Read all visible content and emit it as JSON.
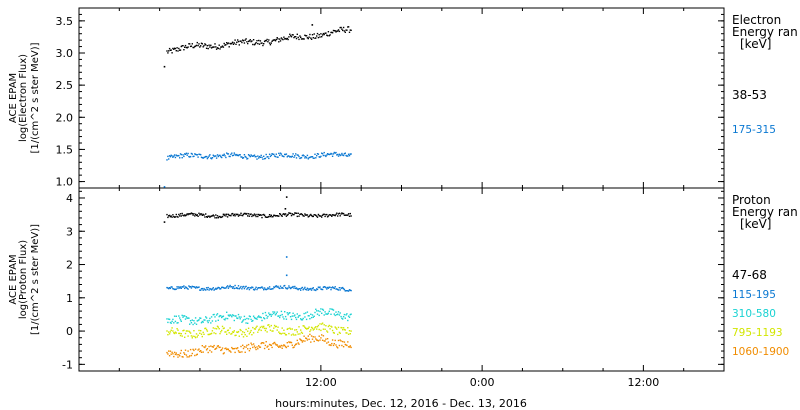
{
  "colors": {
    "black": "#000000",
    "blue": "#0a78d2",
    "cyan": "#19d2d2",
    "yellow": "#d2e600",
    "orange": "#f08c00"
  },
  "x_axis": {
    "label": "hours:minutes, Dec. 12, 2016 - Dec. 13, 2016",
    "range_hours": [
      0,
      48
    ],
    "ticks": [
      {
        "hour": 18,
        "label": "12:00"
      },
      {
        "hour": 30,
        "label": "0:00"
      },
      {
        "hour": 42,
        "label": "12:00"
      }
    ]
  },
  "chart_data": [
    {
      "type": "scatter",
      "ylabel": [
        "ACE EPAM",
        "log(Electron Flux)",
        "[1/(cm^2 s ster MeV)]"
      ],
      "ylim": [
        0.9,
        3.7
      ],
      "yticks": [
        1.0,
        1.5,
        2.0,
        2.5,
        3.0,
        3.5
      ],
      "ytick_labels": [
        "1.0",
        "1.5",
        "2.0",
        "2.5",
        "3.0",
        "3.5"
      ],
      "legend": {
        "title_lines": [
          "Electron",
          "Energy ran",
          "[keV]"
        ],
        "placement": "right"
      },
      "series": [
        {
          "name": "38-53",
          "color": "#000000",
          "x_start": 6.5,
          "x_end": 20.2,
          "values": [
            [
              6.5,
              3.05
            ],
            [
              9.0,
              3.12
            ],
            [
              12.0,
              3.16
            ],
            [
              15.0,
              3.22
            ],
            [
              18.0,
              3.3
            ],
            [
              20.2,
              3.37
            ]
          ],
          "outliers": [
            [
              6.3,
              2.8
            ],
            [
              17.3,
              3.45
            ]
          ]
        },
        {
          "name": "175-315",
          "color": "#0a78d2",
          "x_start": 6.5,
          "x_end": 20.2,
          "values": [
            [
              6.5,
              1.38
            ],
            [
              9.0,
              1.42
            ],
            [
              12.0,
              1.4
            ],
            [
              15.0,
              1.41
            ],
            [
              18.0,
              1.42
            ],
            [
              20.2,
              1.42
            ]
          ],
          "outliers": [
            [
              6.3,
              0.93
            ]
          ]
        }
      ]
    },
    {
      "type": "scatter",
      "ylabel": [
        "ACE EPAM",
        "log(Proton Flux)",
        "[1/(cm^2 s ster MeV)]"
      ],
      "ylim": [
        -1.2,
        4.3
      ],
      "yticks": [
        -1,
        0,
        1,
        2,
        3,
        4
      ],
      "ytick_labels": [
        "-1",
        "0",
        "1",
        "2",
        "3",
        "4"
      ],
      "legend": {
        "title_lines": [
          "Proton",
          "Energy ran",
          "[keV]"
        ],
        "placement": "right"
      },
      "series": [
        {
          "name": "47-68",
          "color": "#000000",
          "x_start": 6.5,
          "x_end": 20.2,
          "values": [
            [
              6.5,
              3.5
            ],
            [
              10.0,
              3.5
            ],
            [
              14.0,
              3.5
            ],
            [
              18.0,
              3.5
            ],
            [
              20.2,
              3.5
            ]
          ],
          "outliers": [
            [
              6.3,
              3.3
            ],
            [
              15.4,
              4.05
            ],
            [
              15.3,
              3.7
            ]
          ]
        },
        {
          "name": "115-195",
          "color": "#0a78d2",
          "x_start": 6.5,
          "x_end": 20.2,
          "values": [
            [
              6.5,
              1.3
            ],
            [
              10.0,
              1.32
            ],
            [
              14.0,
              1.33
            ],
            [
              18.0,
              1.3
            ],
            [
              20.2,
              1.27
            ]
          ],
          "outliers": [
            [
              15.4,
              2.25
            ],
            [
              15.4,
              1.7
            ]
          ]
        },
        {
          "name": "310-580",
          "color": "#19d2d2",
          "x_start": 6.5,
          "x_end": 20.2,
          "values": [
            [
              6.5,
              0.3
            ],
            [
              10.0,
              0.4
            ],
            [
              14.0,
              0.45
            ],
            [
              18.0,
              0.55
            ],
            [
              20.2,
              0.5
            ]
          ],
          "outliers": []
        },
        {
          "name": "795-1193",
          "color": "#d2e600",
          "x_start": 6.5,
          "x_end": 20.2,
          "values": [
            [
              6.5,
              -0.05
            ],
            [
              10.0,
              0.0
            ],
            [
              14.0,
              0.05
            ],
            [
              18.0,
              0.1
            ],
            [
              20.2,
              0.05
            ]
          ],
          "outliers": []
        },
        {
          "name": "1060-1900",
          "color": "#f08c00",
          "x_start": 6.5,
          "x_end": 20.2,
          "values": [
            [
              6.5,
              -0.65
            ],
            [
              10.0,
              -0.55
            ],
            [
              14.0,
              -0.45
            ],
            [
              18.0,
              -0.2
            ],
            [
              20.2,
              -0.4
            ]
          ],
          "outliers": []
        }
      ]
    }
  ]
}
